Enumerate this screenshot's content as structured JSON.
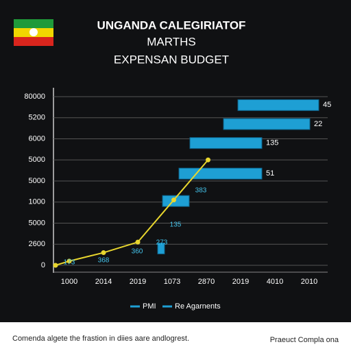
{
  "chart_data": {
    "type": "line",
    "title": [
      "UNGANDA CALEGIRIATOF",
      "MARTHS",
      "EXPENSAN BUDGET"
    ],
    "categories": [
      "1000",
      "2014",
      "2019",
      "1073",
      "2870",
      "2019",
      "4010",
      "2010"
    ],
    "xlim": [
      -0.5,
      7.5
    ],
    "ylim": [
      0,
      8
    ],
    "yticks": [
      0,
      {
        "value": 1,
        "label": "2600"
      },
      {
        "value": 2,
        "label": "5000"
      },
      {
        "value": 3,
        "label": "1000"
      },
      {
        "value": 4,
        "label": "5000"
      },
      {
        "value": 5,
        "label": "5000"
      },
      {
        "value": 6,
        "label": "6000"
      },
      {
        "value": 7,
        "label": "5200"
      },
      {
        "value": 8,
        "label": "80000"
      }
    ],
    "grid": true,
    "series": [
      {
        "name": "PMI",
        "color": "#e8d62e",
        "x": [
          -0.4,
          0,
          1,
          2,
          3.05,
          4.05
        ],
        "values": [
          0,
          0.2,
          0.6,
          1.1,
          3.1,
          5.0
        ]
      }
    ],
    "bars": {
      "name": "Re Agarnents",
      "color": "#1e9fd4",
      "y": [
        7.6,
        6.7,
        5.8,
        4.35,
        3.05,
        0.8
      ],
      "start": [
        4.92,
        4.5,
        3.52,
        3.2,
        2.72,
        2.58
      ],
      "end": [
        7.28,
        7.02,
        5.62,
        5.62,
        3.5,
        2.78
      ],
      "labels": [
        "45",
        "22",
        "135",
        "51",
        null,
        null
      ]
    },
    "annotations": [
      "173",
      "368",
      "360",
      "273",
      "135",
      "383"
    ]
  },
  "footer": {
    "left": "Comenda algete the frastion in diies aare andlogrest.",
    "right": "Praeuct Compla ona"
  }
}
